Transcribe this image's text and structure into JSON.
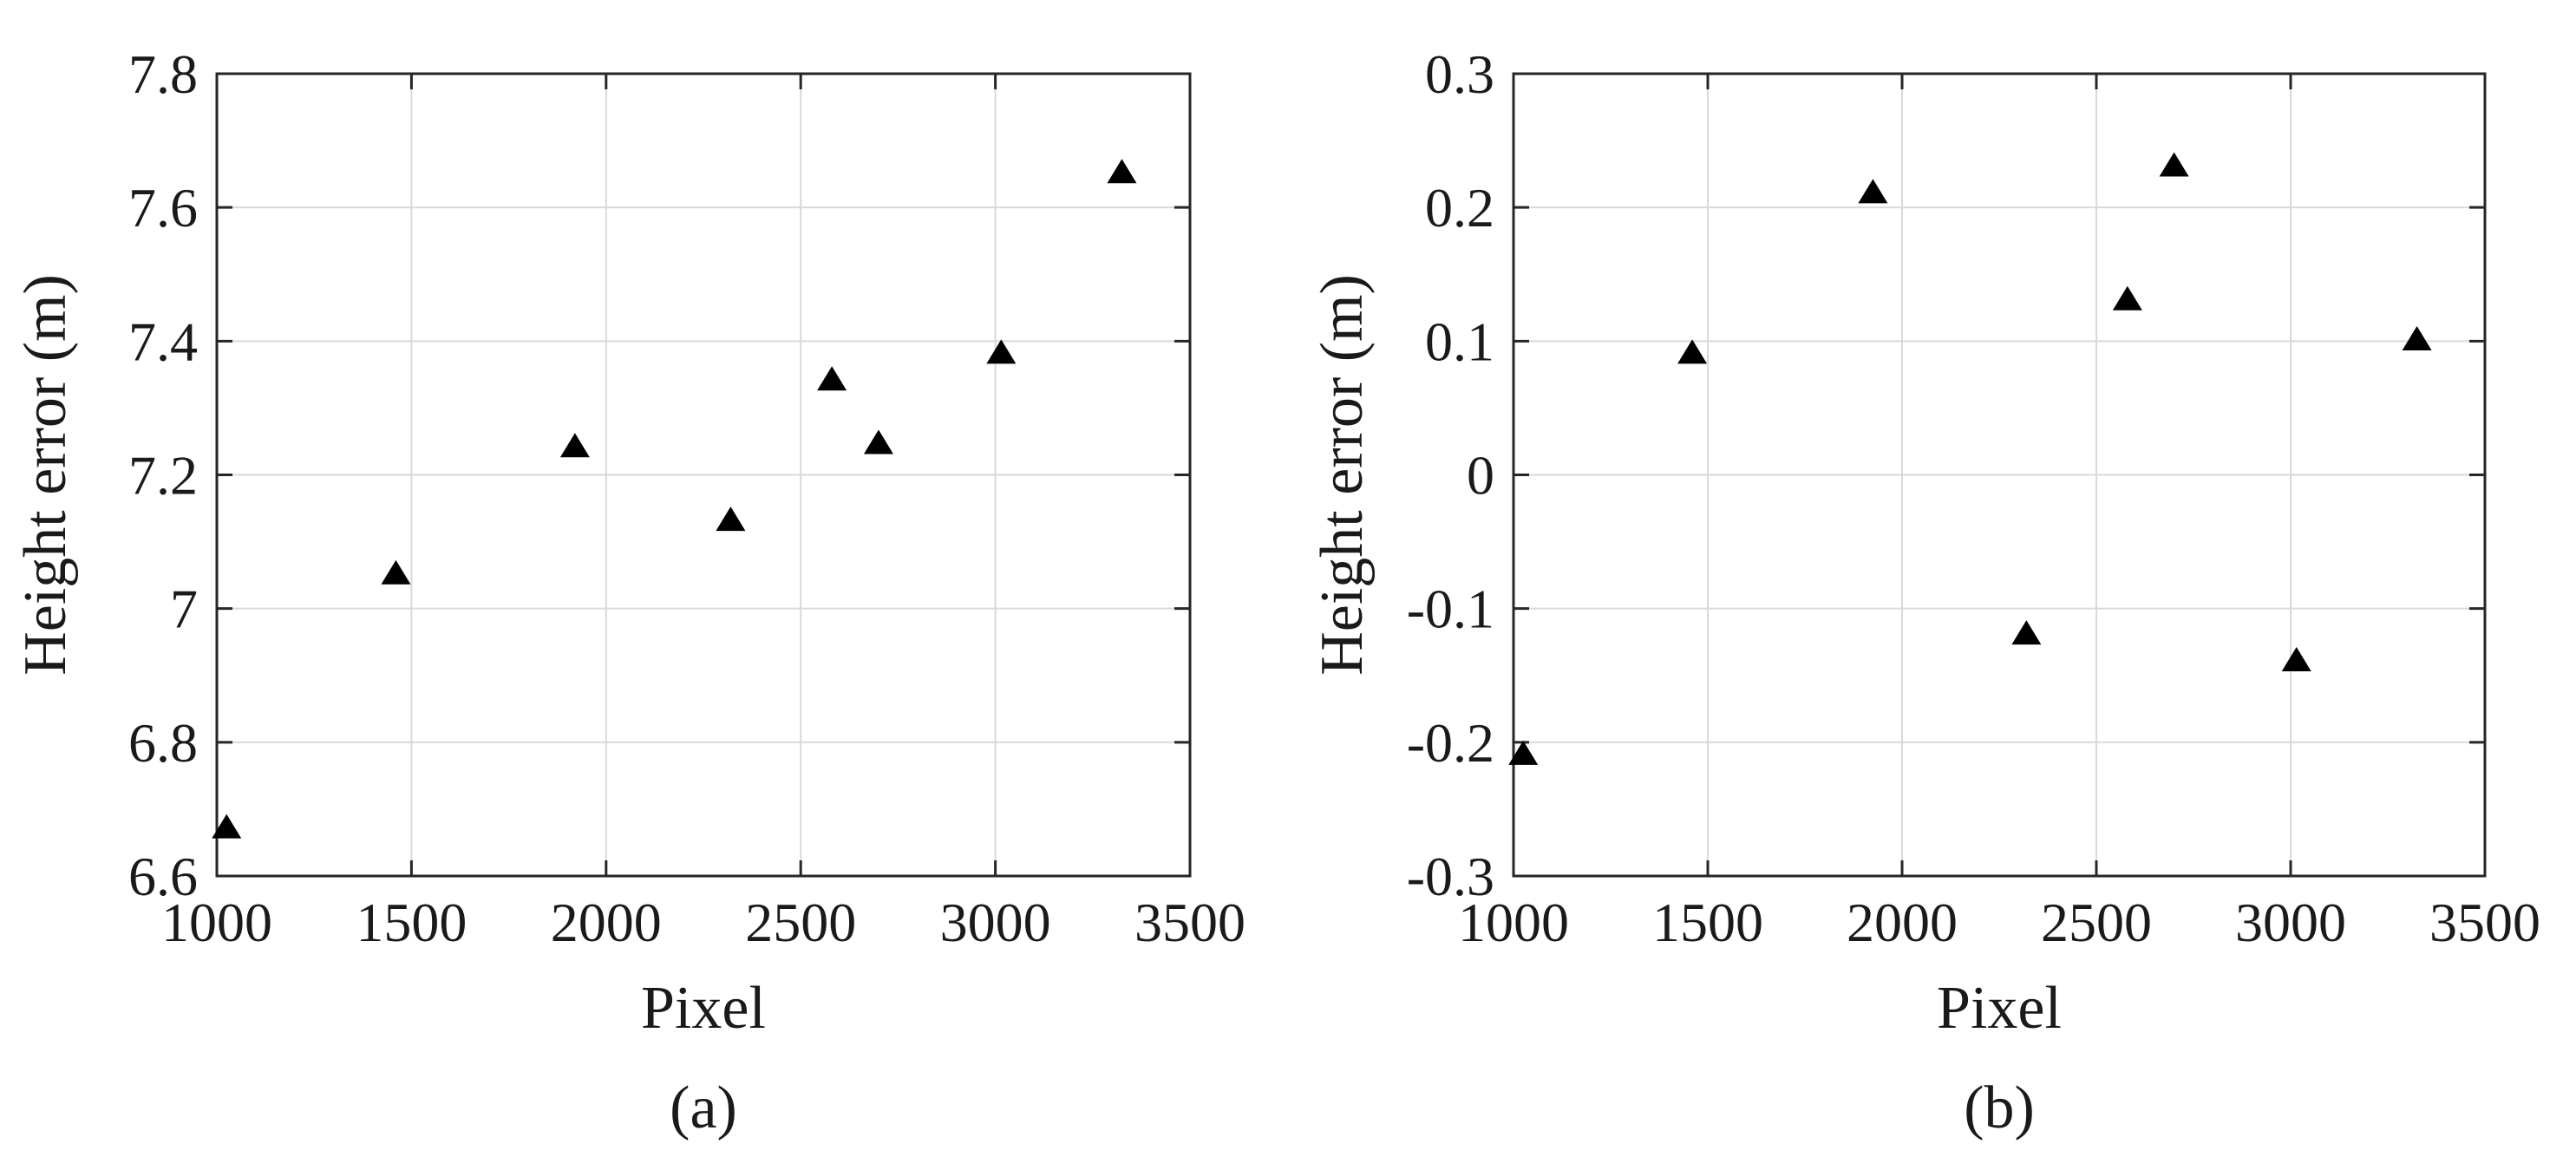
{
  "chart_data": [
    {
      "type": "scatter",
      "panel_label": "(a)",
      "xlabel": "Pixel",
      "ylabel": "Height error (m)",
      "xlim": [
        1000,
        3500
      ],
      "ylim": [
        6.6,
        7.8
      ],
      "x_ticks": [
        "1000",
        "1500",
        "2000",
        "2500",
        "3000",
        "3500"
      ],
      "y_ticks": [
        "6.6",
        "6.8",
        "7",
        "7.2",
        "7.4",
        "7.6",
        "7.8"
      ],
      "grid": true,
      "marker": "triangle",
      "series": [
        {
          "x": [
            1025,
            1460,
            1920,
            2320,
            2580,
            2700,
            3015,
            3325
          ],
          "y": [
            6.67,
            7.05,
            7.24,
            7.13,
            7.34,
            7.245,
            7.38,
            7.65
          ]
        }
      ]
    },
    {
      "type": "scatter",
      "panel_label": "(b)",
      "xlabel": "Pixel",
      "ylabel": "Height error (m)",
      "xlim": [
        1000,
        3500
      ],
      "ylim": [
        -0.3,
        0.3
      ],
      "x_ticks": [
        "1000",
        "1500",
        "2000",
        "2500",
        "3000",
        "3500"
      ],
      "y_ticks": [
        "-0.3",
        "-0.2",
        "-0.1",
        "0",
        "0.1",
        "0.2",
        "0.3"
      ],
      "grid": true,
      "marker": "triangle",
      "series": [
        {
          "x": [
            1025,
            1460,
            1925,
            2320,
            2580,
            2700,
            3015,
            3325
          ],
          "y": [
            -0.21,
            0.09,
            0.21,
            -0.12,
            0.13,
            0.23,
            -0.14,
            0.1
          ]
        }
      ]
    }
  ]
}
